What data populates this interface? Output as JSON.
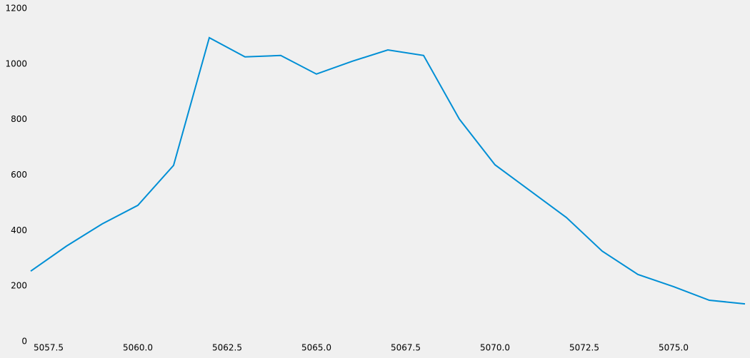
{
  "chart_data": {
    "type": "line",
    "x": [
      5057,
      5058,
      5059,
      5060,
      5061,
      5062,
      5063,
      5064,
      5065,
      5066,
      5067,
      5068,
      5069,
      5070,
      5071,
      5072,
      5073,
      5074,
      5075,
      5076,
      5077
    ],
    "series": [
      {
        "color": "#008fd5",
        "values": [
          254,
          344,
          424,
          491,
          635,
          1095,
          1026,
          1031,
          964,
          1010,
          1051,
          1031,
          802,
          637,
          542,
          447,
          326,
          242,
          198,
          149,
          136
        ]
      }
    ],
    "xlim": [
      5057,
      5077
    ],
    "xticks": [
      5057.5,
      {
        "value": 5060,
        "label": "5060.0"
      },
      5062.5,
      {
        "value": 5065,
        "label": "5065.0"
      },
      5067.5,
      {
        "value": 5070,
        "label": "5070.0"
      },
      5072.5,
      {
        "value": 5075,
        "label": "5075.0"
      }
    ],
    "ylim": [
      0,
      1200
    ],
    "yticks": [
      0,
      200,
      400,
      600,
      800,
      1000,
      1200
    ],
    "grid": false
  }
}
